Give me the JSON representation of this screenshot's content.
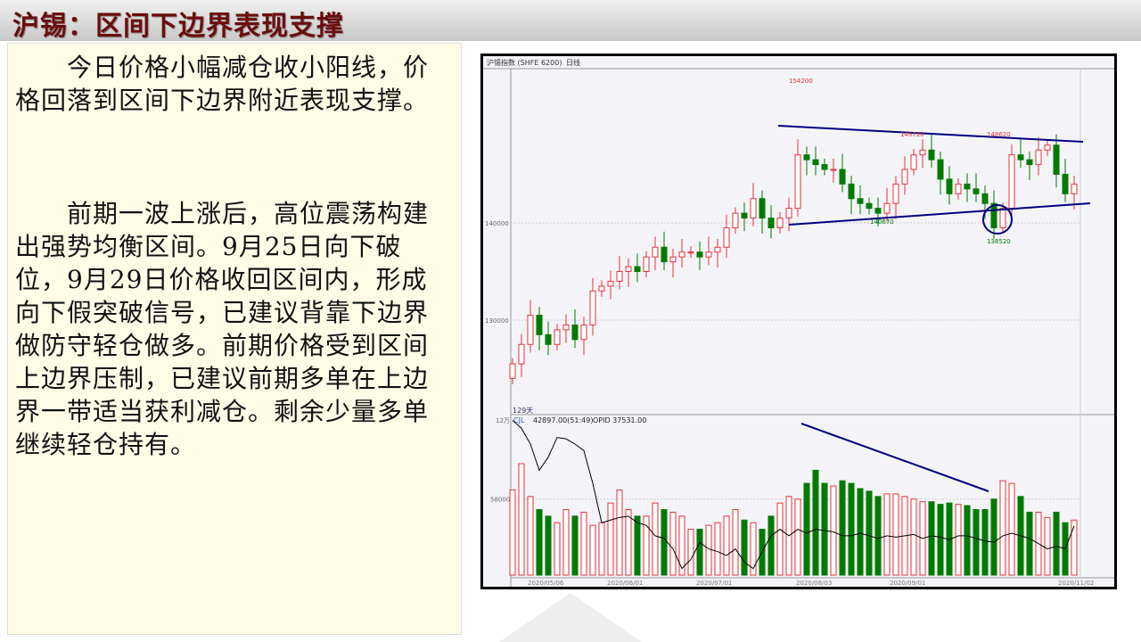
{
  "slide": {
    "title": "沪锡：区间下边界表现支撑",
    "paragraphs": [
      "　　今日价格小幅减仓收小阳线，价格回落到区间下边界附近表现支撑。",
      "　　前期一波上涨后，高位震荡构建出强势均衡区间。9月25日向下破位，9月29日价格收回区间内，形成向下假突破信号，已建议背靠下边界做防守轻仓做多。前期价格受到区间上边界压制，已建议前期多单在上边界一带适当获利减仓。剩余少量多单继续轻仓持有。"
    ]
  },
  "chart_data": {
    "type": "candlestick",
    "header": {
      "symbol": "沪锡指数 (SHFE 6200)",
      "period": "日线"
    },
    "colors": {
      "up": "#e8303a",
      "down": "#007a00",
      "trendline": "#000080",
      "oi_line": "#000000"
    },
    "price_axis": {
      "ticks": [
        130000,
        140000
      ],
      "tick_labels": [
        "130000",
        "140000"
      ],
      "range": [
        123500,
        156500
      ]
    },
    "date_labels": [
      "2020/05/06",
      "2020/06/01",
      "2020/07/01",
      "2020/08/03",
      "2020/09/01",
      "2020/11/02"
    ],
    "days_label": "129天",
    "annotations": {
      "high": "154200",
      "upper_peak_1": "149720",
      "upper_peak_2": "148620",
      "low_1": "140670",
      "low_2": "138520"
    },
    "closes": [
      125500,
      127500,
      130500,
      128500,
      127500,
      129000,
      129500,
      128000,
      129500,
      133000,
      133500,
      134000,
      135000,
      135500,
      135000,
      136500,
      137500,
      136000,
      136500,
      137000,
      137000,
      136500,
      137000,
      137500,
      139500,
      141000,
      140500,
      142500,
      140500,
      139500,
      140500,
      141500,
      147000,
      146500,
      146000,
      145500,
      145500,
      144000,
      142500,
      142000,
      141500,
      141000,
      142000,
      144000,
      145500,
      147000,
      147500,
      146500,
      144500,
      143000,
      144000,
      143500,
      143000,
      142000,
      139500,
      141500,
      147000,
      146500,
      146000,
      147500,
      148000,
      145000,
      143000,
      144000
    ],
    "volume_panel": {
      "axis_labels": [
        "12万",
        "58000"
      ],
      "indicator": "CJL",
      "volume_readout": "42897.00(51:49)",
      "oi_readout": "OPID 37531.00",
      "volumes": [
        65000,
        85000,
        60000,
        50000,
        45000,
        40000,
        50000,
        45000,
        48000,
        38000,
        40000,
        55000,
        65000,
        50000,
        45000,
        45000,
        55000,
        50000,
        48000,
        45000,
        35000,
        35000,
        38000,
        40000,
        45000,
        50000,
        42000,
        40000,
        35000,
        45000,
        55000,
        60000,
        58000,
        70000,
        80000,
        70000,
        68000,
        72000,
        70000,
        66000,
        64000,
        60000,
        62000,
        62000,
        60000,
        58000,
        56000,
        56000,
        54000,
        55000,
        54000,
        53000,
        50000,
        50000,
        58000,
        72000,
        70000,
        60000,
        48000,
        48000,
        44000,
        48000,
        40000,
        42000
      ],
      "open_interest": [
        118000,
        112000,
        100000,
        80000,
        90000,
        105000,
        104000,
        100000,
        95000,
        70000,
        40000,
        42000,
        44000,
        45000,
        40000,
        38000,
        30000,
        28000,
        20000,
        5000,
        12000,
        25000,
        20000,
        18000,
        15000,
        20000,
        10000,
        5000,
        18000,
        30000,
        35000,
        30000,
        35000,
        32000,
        35000,
        34000,
        33000,
        30000,
        30000,
        32000,
        30000,
        28000,
        30000,
        29000,
        30000,
        31000,
        28000,
        30000,
        29000,
        27000,
        30000,
        30000,
        28000,
        26000,
        25000,
        30000,
        32000,
        30000,
        28000,
        24000,
        20000,
        22000,
        20000,
        37531
      ]
    }
  }
}
